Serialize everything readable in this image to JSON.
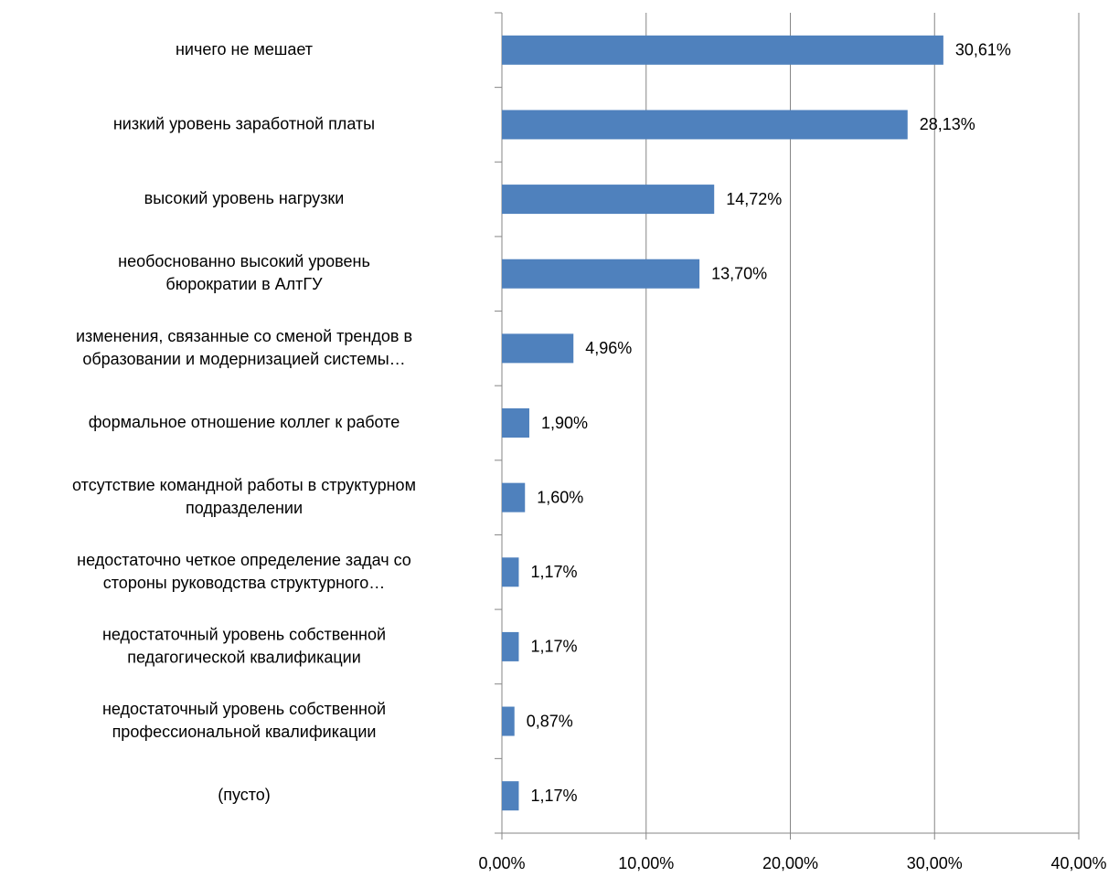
{
  "chart_data": {
    "type": "bar",
    "orientation": "horizontal",
    "categories": [
      "ничего не мешает",
      "низкий уровень заработной платы",
      "высокий уровень нагрузки",
      "необоснованно высокий уровень\nбюрократии в АлтГУ",
      "изменения, связанные со сменой трендов в\nобразовании и модернизацией системы…",
      "формальное отношение коллег к работе",
      "отсутствие командной работы в структурном\nподразделении",
      "недостаточно четкое определение задач со\nстороны руководства структурного…",
      "недостаточный уровень собственной\nпедагогической квалификации",
      "недостаточный уровень собственной\nпрофессиональной квалификации",
      "(пусто)"
    ],
    "values": [
      30.61,
      28.13,
      14.72,
      13.7,
      4.96,
      1.9,
      1.6,
      1.17,
      1.17,
      0.87,
      1.17
    ],
    "value_labels": [
      "30,61%",
      "28,13%",
      "14,72%",
      "13,70%",
      "4,96%",
      "1,90%",
      "1,60%",
      "1,17%",
      "1,17%",
      "0,87%",
      "1,17%"
    ],
    "color": "#4f81bd",
    "xlim": [
      0,
      40
    ],
    "xticks": [
      {
        "value": 0,
        "label": "0,00%"
      },
      {
        "value": 10,
        "label": "10,00%"
      },
      {
        "value": 20,
        "label": "20,00%"
      },
      {
        "value": 30,
        "label": "30,00%"
      },
      {
        "value": 40,
        "label": "40,00%"
      }
    ],
    "grid": true
  }
}
